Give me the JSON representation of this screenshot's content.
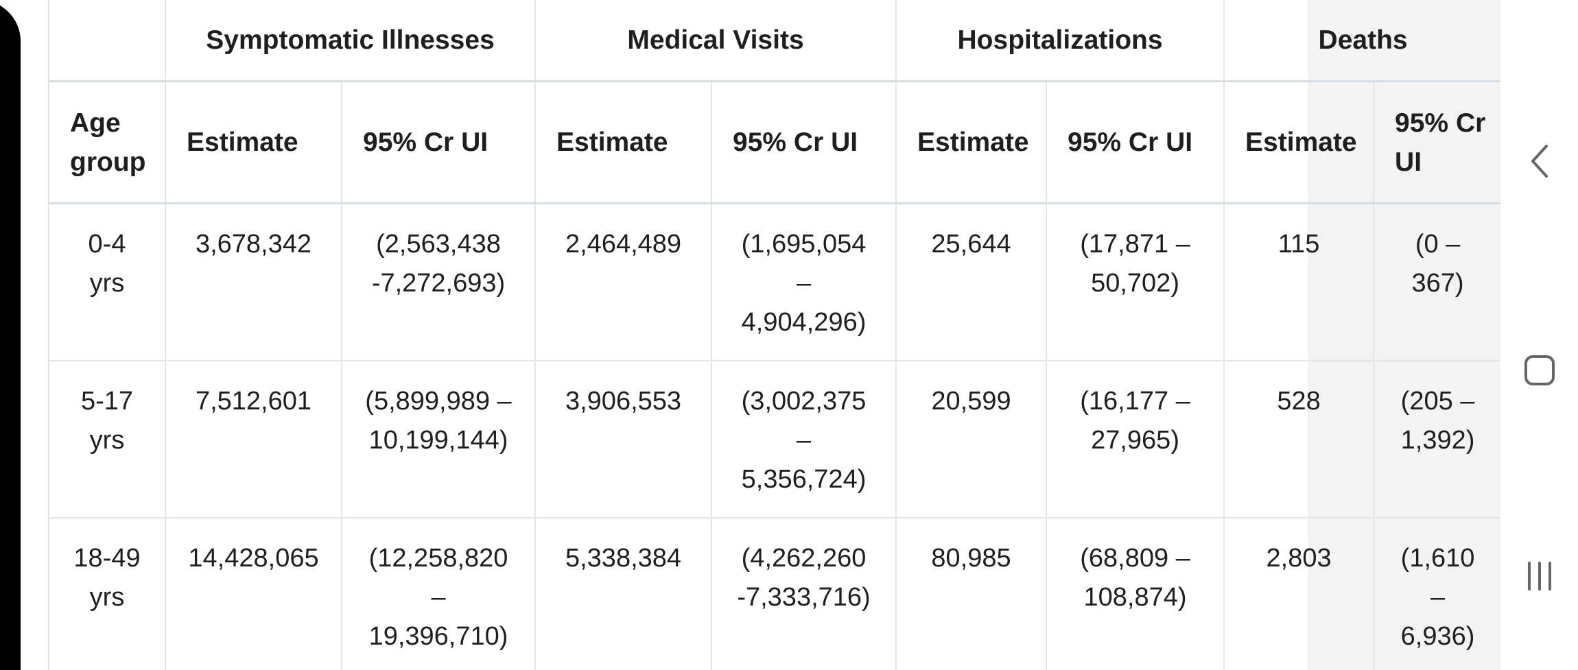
{
  "table": {
    "group_headers": [
      "Symptomatic Illnesses",
      "Medical Visits",
      "Hospitalizations",
      "Deaths"
    ],
    "sub_headers": [
      "Age group",
      "Estimate",
      "95% Cr UI",
      "Estimate",
      "95% Cr UI",
      "Estimate",
      "95% Cr UI",
      "Estimate",
      "95% Cr UI"
    ],
    "rows": [
      [
        "0-4\nyrs",
        "3,678,342",
        "(2,563,438\n-7,272,693)",
        "2,464,489",
        "(1,695,054\n–\n4,904,296)",
        "25,644",
        "(17,871 –\n50,702)",
        "115",
        "(0 –\n367)"
      ],
      [
        "5-17\nyrs",
        "7,512,601",
        "(5,899,989 –\n10,199,144)",
        "3,906,553",
        "(3,002,375\n–\n5,356,724)",
        "20,599",
        "(16,177 –\n27,965)",
        "528",
        "(205 –\n1,392)"
      ],
      [
        "18-49\nyrs",
        "14,428,065",
        "(12,258,820\n–\n19,396,710)",
        "5,338,384",
        "(4,262,260\n-7,333,716)",
        "80,985",
        "(68,809 –\n108,874)",
        "2,803",
        "(1,610\n–\n6,936)"
      ]
    ]
  },
  "nav": {
    "back_icon": "chevron-left-icon",
    "home_icon": "home-square-icon",
    "recents_icon": "recents-lines-icon"
  }
}
